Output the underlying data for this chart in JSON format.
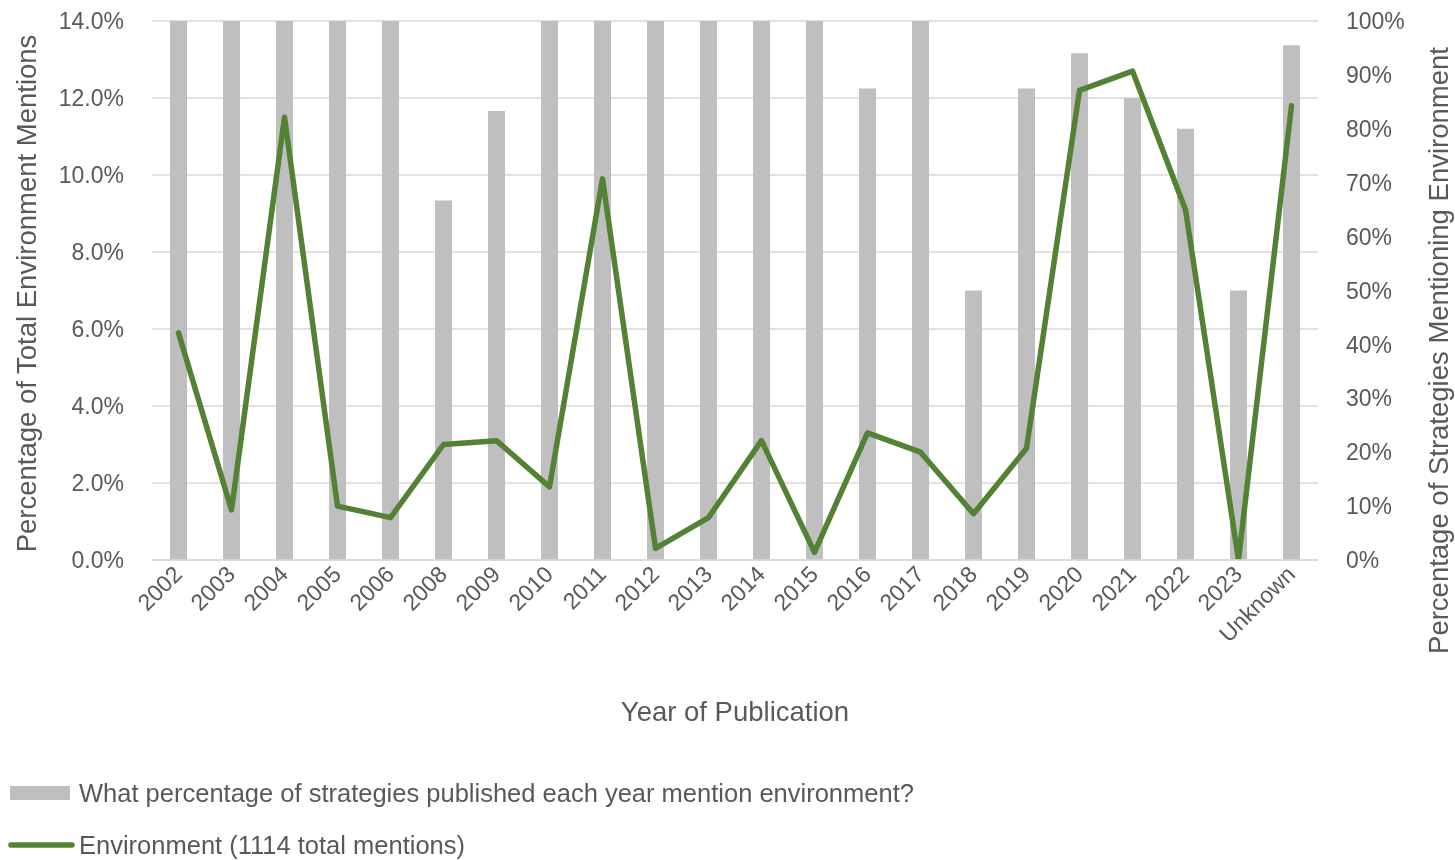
{
  "chart_data": {
    "type": "bar",
    "xlabel": "Year of Publication",
    "ylabel": "Percentage of Total Environment Mentions",
    "y2label": "Percentage of Strategies Mentioning Environment",
    "categories": [
      "2002",
      "2003",
      "2004",
      "2005",
      "2006",
      "2008",
      "2009",
      "2010",
      "2011",
      "2012",
      "2013",
      "2014",
      "2015",
      "2016",
      "2017",
      "2018",
      "2019",
      "2020",
      "2021",
      "2022",
      "2023",
      "Unknown"
    ],
    "series": [
      {
        "name": "What percentage of strategies published each year mention environment?",
        "axis": "y2",
        "color": "#bfbfbf",
        "values": [
          100,
          100,
          100,
          100,
          100,
          66.7,
          83.3,
          100,
          100,
          100,
          100,
          100,
          100,
          87.5,
          100,
          50,
          87.5,
          94,
          85.7,
          80,
          50,
          95.5
        ]
      },
      {
        "name": "Environment (1114 total mentions)",
        "type": "line",
        "axis": "y",
        "color": "#548235",
        "values": [
          5.9,
          1.3,
          11.5,
          1.4,
          1.1,
          3.0,
          3.1,
          1.9,
          9.9,
          0.3,
          1.1,
          3.1,
          0.2,
          3.3,
          2.8,
          1.2,
          2.9,
          12.2,
          12.7,
          9.1,
          0,
          11.8
        ]
      }
    ],
    "ylim": [
      0,
      14
    ],
    "yticks": [
      {
        "value": 0,
        "label": "0.0%"
      },
      {
        "value": 2,
        "label": "2.0%"
      },
      {
        "value": 4,
        "label": "4.0%"
      },
      {
        "value": 6,
        "label": "6.0%"
      },
      {
        "value": 8,
        "label": "8.0%"
      },
      {
        "value": 10,
        "label": "10.0%"
      },
      {
        "value": 12,
        "label": "12.0%"
      },
      {
        "value": 14,
        "label": "14.0%"
      }
    ],
    "y2lim": [
      0,
      100
    ],
    "y2ticks": [
      {
        "value": 0,
        "label": "0%"
      },
      {
        "value": 10,
        "label": "10%"
      },
      {
        "value": 20,
        "label": "20%"
      },
      {
        "value": 30,
        "label": "30%"
      },
      {
        "value": 40,
        "label": "40%"
      },
      {
        "value": 50,
        "label": "50%"
      },
      {
        "value": 60,
        "label": "60%"
      },
      {
        "value": 70,
        "label": "70%"
      },
      {
        "value": 80,
        "label": "80%"
      },
      {
        "value": 90,
        "label": "90%"
      },
      {
        "value": 100,
        "label": "100%"
      }
    ],
    "grid": "y",
    "legend": "bottom",
    "marker": "none",
    "line_style": "solid"
  }
}
